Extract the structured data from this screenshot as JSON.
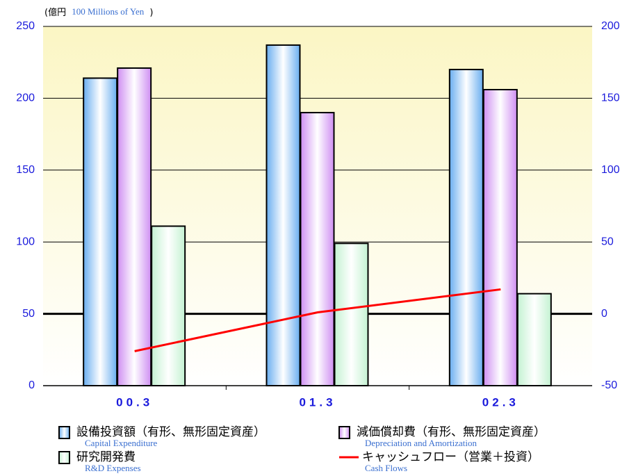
{
  "chart_data": {
    "type": "bar",
    "units": [
      "(億円",
      "100 Millions of Yen",
      ")"
    ],
    "categories": [
      "00.3",
      "01.3",
      "02.3"
    ],
    "series": [
      {
        "name": "設備投資額（有形、無形固定資産）",
        "name_en": "Capital Expenditure",
        "color": "#6aaef0",
        "values": [
          214,
          237,
          220
        ]
      },
      {
        "name": "減価償却費（有形、無形固定資産）",
        "name_en": "Depreciation and Amortization",
        "color": "#cf8ff2",
        "values": [
          221,
          190,
          206
        ]
      },
      {
        "name": "研究開発費",
        "name_en": "R&D Expenses",
        "color": "#c4f2d2",
        "values": [
          111,
          99,
          64
        ]
      },
      {
        "name": "キャッシュフロー（営業＋投資）",
        "name_en": "Cash Flows",
        "color": "#ff0000",
        "type": "line",
        "axis": "y2",
        "values": [
          -26,
          1,
          17
        ]
      }
    ],
    "ylim": [
      0,
      250
    ],
    "yticks": [
      0,
      50,
      100,
      150,
      200,
      250
    ],
    "y2lim": [
      -50,
      200
    ],
    "y2ticks": [
      -50,
      0,
      50,
      100,
      150,
      200
    ],
    "grid": true
  }
}
